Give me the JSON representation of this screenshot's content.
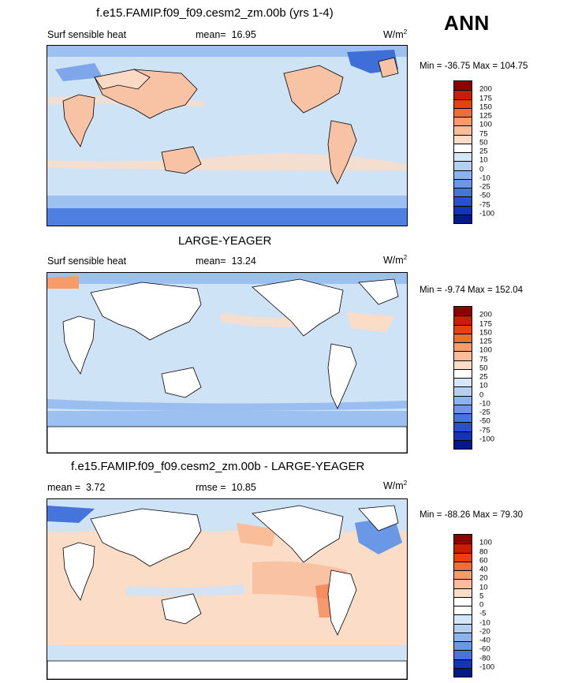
{
  "season": "ANN",
  "panels": [
    {
      "title": "f.e15.FAMIP.f09_f09.cesm2_zm.00b (yrs 1-4)",
      "variable": "Surf sensible heat",
      "stat_label": "mean=",
      "stat_value": "16.95",
      "stat2_label": "",
      "stat2_value": "",
      "units": "W/m",
      "units_exp": "2",
      "minmax": "Min = -36.75 Max = 104.75",
      "colorbar_levels": [
        "200",
        "175",
        "150",
        "125",
        "100",
        "75",
        "50",
        "25",
        "10",
        "0",
        "-10",
        "-25",
        "-50",
        "-75",
        "-100"
      ],
      "colorbar_colors": [
        "#8c0000",
        "#c81e00",
        "#e84010",
        "#f26c36",
        "#f79b6a",
        "#f9bd9a",
        "#fbdcc6",
        "#ffffff",
        "#d4e6f8",
        "#b3d0f2",
        "#8cb4ec",
        "#6a98e6",
        "#4674dd",
        "#2a50cf",
        "#1434b8",
        "#001a8a"
      ],
      "ocean_fill": "#cfe3f7",
      "land_masked": false
    },
    {
      "title": "LARGE-YEAGER",
      "variable": "Surf sensible heat",
      "stat_label": "mean=",
      "stat_value": "13.24",
      "stat2_label": "",
      "stat2_value": "",
      "units": "W/m",
      "units_exp": "2",
      "minmax": "Min =  -9.74 Max = 152.04",
      "colorbar_levels": [
        "200",
        "175",
        "150",
        "125",
        "100",
        "75",
        "50",
        "25",
        "10",
        "0",
        "-10",
        "-25",
        "-50",
        "-75",
        "-100"
      ],
      "colorbar_colors": [
        "#8c0000",
        "#c81e00",
        "#e84010",
        "#f26c36",
        "#f79b6a",
        "#f9bd9a",
        "#fbdcc6",
        "#ffffff",
        "#d4e6f8",
        "#b3d0f2",
        "#8cb4ec",
        "#6a98e6",
        "#4674dd",
        "#2a50cf",
        "#1434b8",
        "#001a8a"
      ],
      "ocean_fill": "#cfe3f7",
      "land_masked": true
    },
    {
      "title": "f.e15.FAMIP.f09_f09.cesm2_zm.00b - LARGE-YEAGER",
      "variable": "",
      "stat_label": "mean =",
      "stat_value": "3.72",
      "stat2_label": "rmse =",
      "stat2_value": "10.85",
      "units": "W/m",
      "units_exp": "2",
      "minmax": "Min = -88.26 Max =  79.30",
      "colorbar_levels": [
        "100",
        "80",
        "60",
        "40",
        "20",
        "10",
        "5",
        "0",
        "-5",
        "-10",
        "-20",
        "-40",
        "-60",
        "-80",
        "-100"
      ],
      "colorbar_colors": [
        "#8c0000",
        "#c81e00",
        "#e84010",
        "#f26c36",
        "#f79b6a",
        "#f9bd9a",
        "#fbdcc6",
        "#ffffff",
        "#ffffff",
        "#d4e6f8",
        "#b3d0f2",
        "#8cb4ec",
        "#6a98e6",
        "#4674dd",
        "#1434b8",
        "#001a8a"
      ],
      "ocean_fill": "#fbdcc6",
      "land_masked": true
    }
  ]
}
